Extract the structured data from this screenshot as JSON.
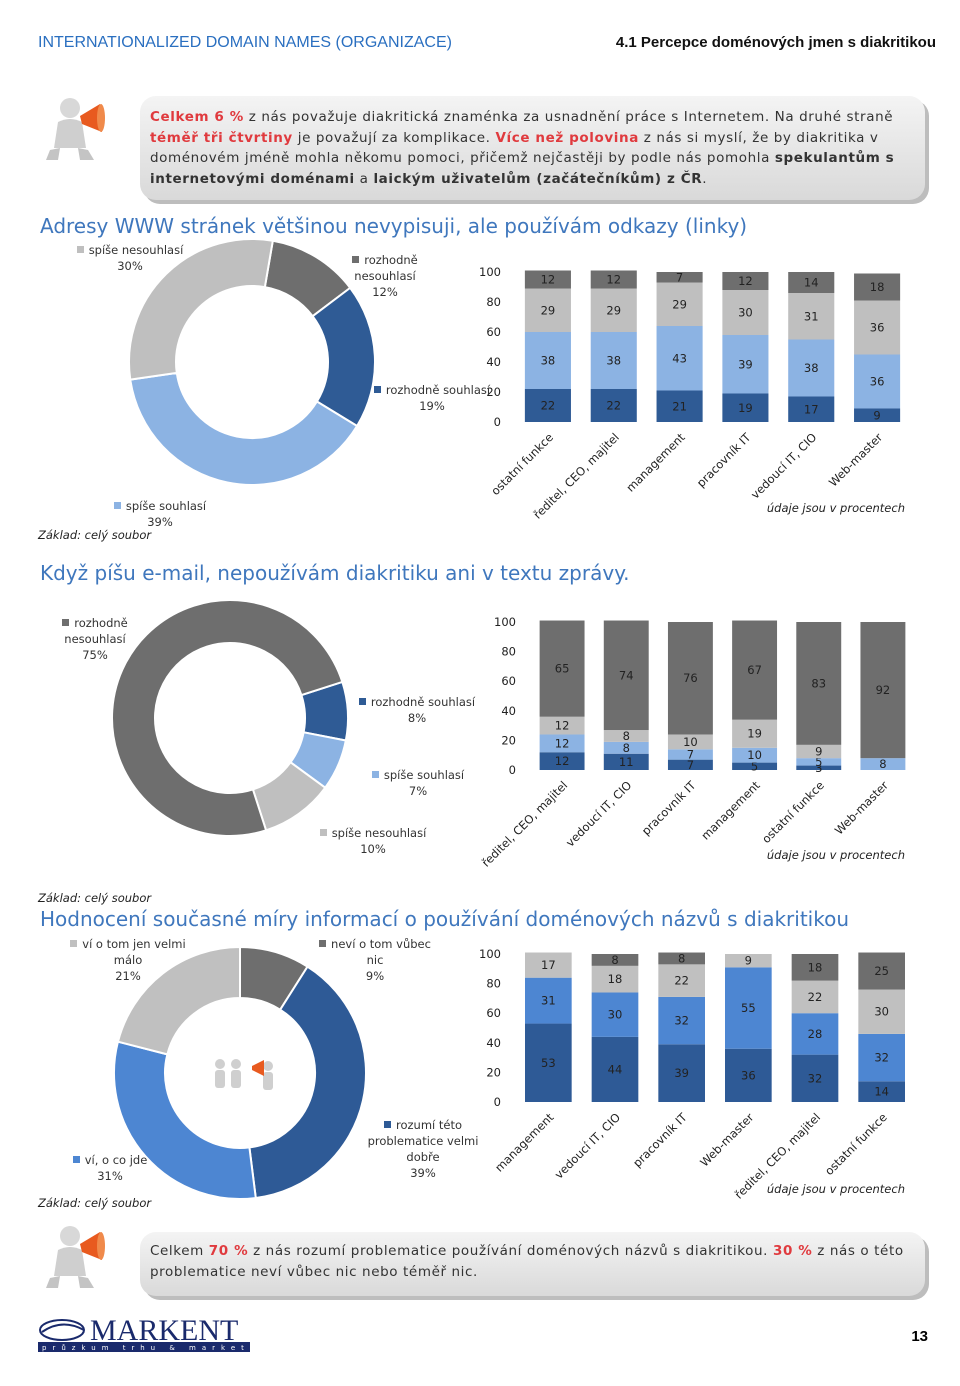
{
  "header": {
    "title": "INTERNATIONALIZED DOMAIN NAMES (ORGANIZACE)",
    "section": "4.1 Percepce doménových jmen s diakritikou"
  },
  "callouts": [
    {
      "runs": [
        {
          "text": "Celkem 6 %",
          "color": "#e03a3e",
          "bold": true
        },
        {
          "text": " z nás považuje diakritická znaménka  za usnadnění práce s Internetem. Na druhé straně "
        },
        {
          "text": "téměř tři čtvrtiny",
          "color": "#e03a3e",
          "bold": true
        },
        {
          "text": " je považují za komplikace. "
        },
        {
          "text": "Více než polovina",
          "color": "#e03a3e",
          "bold": true
        },
        {
          "text": " z nás si myslí, že by diakritika v doménovém jméně mohla někomu pomoci, přičemž nejčastěji by podle nás pomohla "
        },
        {
          "text": "spekulantům s internetovými doménami",
          "bold": true
        },
        {
          "text": " a "
        },
        {
          "text": "laickým uživatelům (začátečníkům) z ČR",
          "bold": true
        },
        {
          "text": "."
        }
      ]
    },
    {
      "runs": [
        {
          "text": "Celkem "
        },
        {
          "text": "70 %",
          "color": "#e03a3e",
          "bold": true
        },
        {
          "text": " z nás rozumí problematice používání doménových názvů s diakritikou. "
        },
        {
          "text": "30 %",
          "color": "#e03a3e",
          "bold": true
        },
        {
          "text": " z nás o této problematice neví vůbec nic nebo téměř nic."
        }
      ]
    }
  ],
  "chart_data": [
    {
      "type": "donut",
      "title": "Adresy WWW stránek většinou nevypisuji, ale používám odkazy (linky)",
      "note": "Základ: celý soubor",
      "categories": [
        "rozhodně nesouhlasí",
        "rozhodně souhlasí",
        "spíše souhlasí",
        "spíše nesouhlasí"
      ],
      "values": [
        12,
        19,
        39,
        30
      ],
      "value_labels": [
        "12%",
        "19%",
        "39%",
        "30%"
      ],
      "colors": [
        "#6e6e6e",
        "#2f5b95",
        "#8cb3e3",
        "#bfbfbf"
      ]
    },
    {
      "type": "bar",
      "stacked": true,
      "note": "údaje jsou v procentech",
      "categories": [
        "ostatní funkce",
        "ředitel, CEO, majitel",
        "management",
        "pracovník IT",
        "vedoucí IT, CIO",
        "Web-master"
      ],
      "series": [
        {
          "color": "#2f5b95",
          "values": [
            22,
            22,
            21,
            19,
            17,
            9
          ]
        },
        {
          "color": "#8cb3e3",
          "values": [
            38,
            38,
            43,
            39,
            38,
            36
          ]
        },
        {
          "color": "#bfbfbf",
          "values": [
            29,
            29,
            29,
            30,
            31,
            36
          ]
        },
        {
          "color": "#6e6e6e",
          "values": [
            12,
            12,
            7,
            12,
            14,
            18
          ]
        }
      ],
      "ylim": [
        0,
        100
      ],
      "yticks": [
        0,
        20,
        40,
        60,
        80,
        100
      ]
    },
    {
      "type": "donut",
      "title": "Když píšu e-mail, nepoužívám diakritiku ani v textu zprávy.",
      "note": "Základ: celý soubor",
      "categories": [
        "rozhodně souhlasí",
        "spíše souhlasí",
        "spíše nesouhlasí",
        "rozhodně nesouhlasí"
      ],
      "values": [
        8,
        7,
        10,
        75
      ],
      "value_labels": [
        "8%",
        "7%",
        "10%",
        "75%"
      ],
      "colors": [
        "#2f5b95",
        "#8cb3e3",
        "#bfbfbf",
        "#6e6e6e"
      ]
    },
    {
      "type": "bar",
      "stacked": true,
      "note": "údaje jsou v procentech",
      "categories": [
        "ředitel, CEO, majitel",
        "vedoucí IT, CIO",
        "pracovník IT",
        "management",
        "ostatní funkce",
        "Web-master"
      ],
      "series": [
        {
          "color": "#2f5b95",
          "values": [
            12,
            11,
            7,
            5,
            3,
            null
          ]
        },
        {
          "color": "#8cb3e3",
          "values": [
            12,
            8,
            7,
            10,
            5,
            8
          ]
        },
        {
          "color": "#bfbfbf",
          "values": [
            12,
            8,
            10,
            19,
            9,
            null
          ]
        },
        {
          "color": "#6e6e6e",
          "values": [
            65,
            74,
            76,
            67,
            83,
            92
          ]
        }
      ],
      "ylim": [
        0,
        100
      ],
      "yticks": [
        0,
        20,
        40,
        60,
        80,
        100
      ]
    },
    {
      "type": "donut",
      "title": "Hodnocení současné míry informací o používání doménových názvů s diakritikou",
      "note": "Základ: celý soubor",
      "categories": [
        "neví o tom vůbec nic",
        "rozumí této problematice velmi dobře",
        "ví, o co jde",
        "ví o tom jen velmi málo"
      ],
      "values": [
        9,
        39,
        31,
        21
      ],
      "value_labels": [
        "9%",
        "39%",
        "31%",
        "21%"
      ],
      "colors": [
        "#6e6e6e",
        "#2e5a96",
        "#4d86d2",
        "#c0c0c0"
      ]
    },
    {
      "type": "bar",
      "stacked": true,
      "note": "údaje jsou v procentech",
      "categories": [
        "management",
        "vedoucí IT, CIO",
        "pracovník IT",
        "Web-master",
        "ředitel, CEO, majitel",
        "ostatní funkce"
      ],
      "series": [
        {
          "color": "#2e5a96",
          "values": [
            53,
            44,
            39,
            36,
            32,
            14
          ]
        },
        {
          "color": "#4d86d2",
          "values": [
            31,
            30,
            32,
            55,
            28,
            32
          ]
        },
        {
          "color": "#c0c0c0",
          "values": [
            17,
            18,
            22,
            9,
            22,
            30
          ]
        },
        {
          "color": "#6e6e6e",
          "values": [
            null,
            8,
            8,
            null,
            18,
            25
          ]
        }
      ],
      "ylim": [
        0,
        100
      ],
      "yticks": [
        0,
        20,
        40,
        60,
        80,
        100
      ]
    }
  ],
  "footer": {
    "brand": "MARKENT",
    "tagline": "průzkum trhu & marketing",
    "page": "13"
  }
}
